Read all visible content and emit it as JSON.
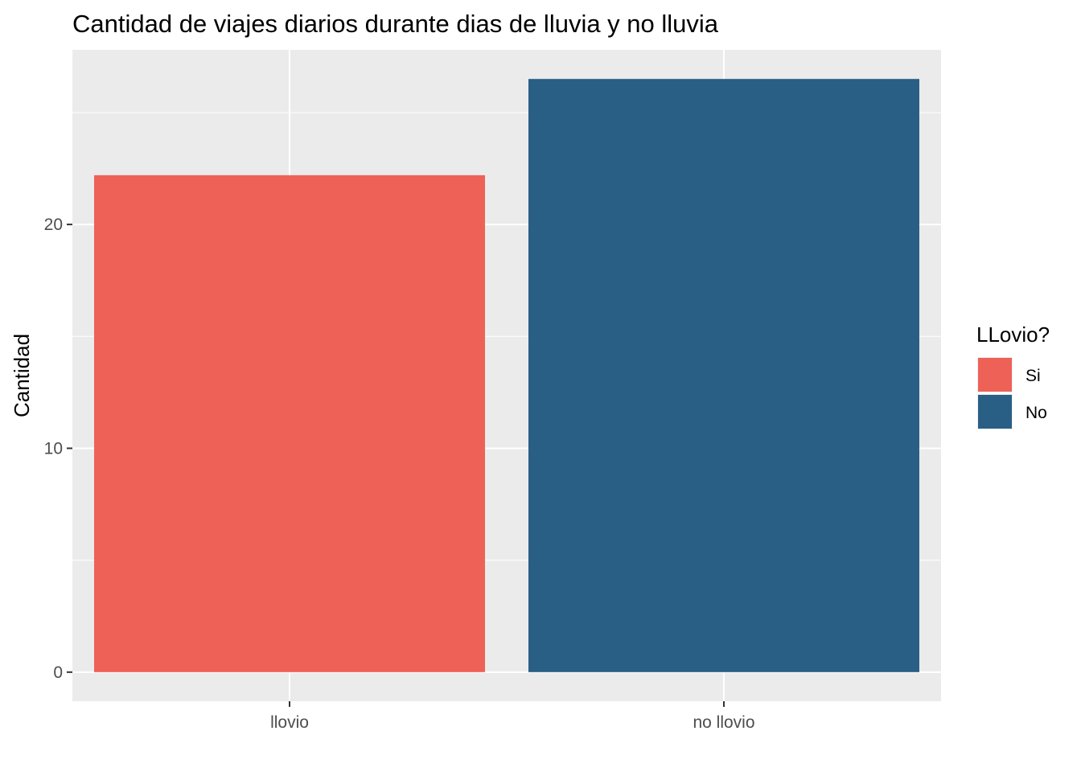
{
  "chart_data": {
    "type": "bar",
    "title": "Cantidad de viajes diarios durante dias de lluvia y no lluvia",
    "xlabel": "",
    "ylabel": "Cantidad",
    "categories": [
      "llovio",
      "no llovio"
    ],
    "values": [
      22.2,
      26.5
    ],
    "bar_colors": [
      "#ee6157",
      "#295f85"
    ],
    "ylim": [
      -1.3,
      27.8
    ],
    "yticks": [
      0,
      10,
      20
    ],
    "ytick_labels": [
      "0",
      "10",
      "20"
    ],
    "grid": true,
    "legend": {
      "title": "LLovio?",
      "placement": "right",
      "entries": [
        {
          "label": "Si",
          "color": "#ee6157"
        },
        {
          "label": "No",
          "color": "#295f85"
        }
      ]
    },
    "panel_background": "#ebebeb",
    "grid_color": "#ffffff"
  }
}
